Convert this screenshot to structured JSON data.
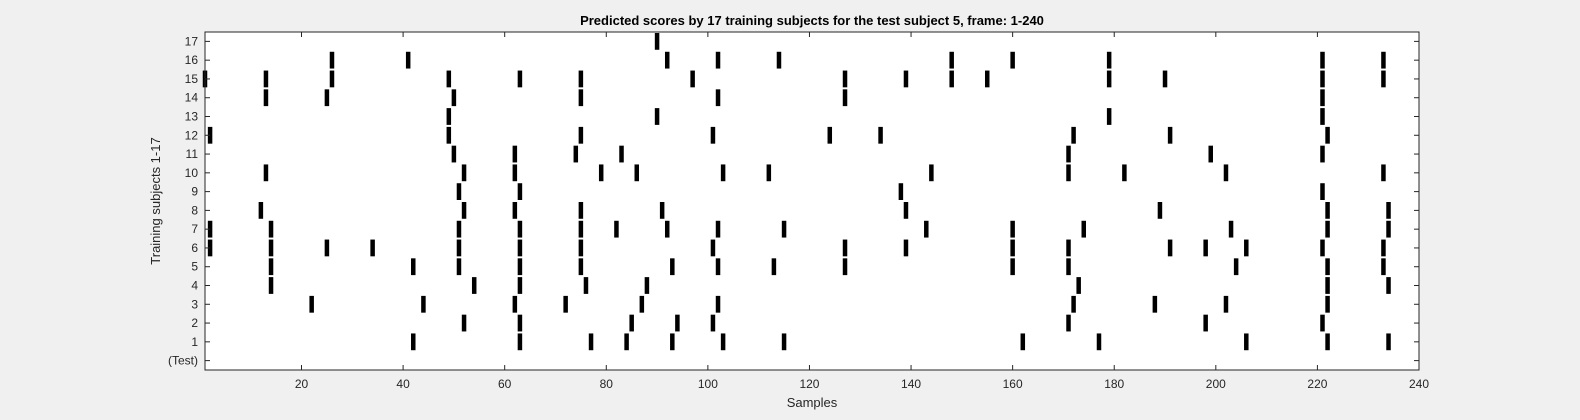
{
  "chart_data": {
    "type": "scatter",
    "title": "Predicted scores by 17 training subjects for the test subject 5, frame: 1-240",
    "xlabel": "Samples",
    "ylabel": "Training subjects 1-17",
    "xlim": [
      1,
      240
    ],
    "xticks": [
      20,
      40,
      60,
      80,
      100,
      120,
      140,
      160,
      180,
      200,
      220,
      240
    ],
    "yticklabels": [
      "(Test)",
      "1",
      "2",
      "3",
      "4",
      "5",
      "6",
      "7",
      "8",
      "9",
      "10",
      "11",
      "12",
      "13",
      "14",
      "15",
      "16",
      "17"
    ],
    "grid": false,
    "marker_color": "#000000",
    "series": [
      {
        "row": "1",
        "x": [
          42,
          63,
          77,
          84,
          93,
          103,
          115,
          162,
          177,
          206,
          222,
          234
        ]
      },
      {
        "row": "2",
        "x": [
          52,
          63,
          85,
          94,
          101,
          171,
          198,
          221
        ]
      },
      {
        "row": "3",
        "x": [
          22,
          44,
          62,
          72,
          87,
          102,
          172,
          188,
          202,
          222
        ]
      },
      {
        "row": "4",
        "x": [
          14,
          54,
          63,
          76,
          88,
          173,
          222,
          234
        ]
      },
      {
        "row": "5",
        "x": [
          14,
          42,
          51,
          63,
          75,
          93,
          102,
          113,
          127,
          160,
          171,
          204,
          222,
          233
        ]
      },
      {
        "row": "6",
        "x": [
          2,
          14,
          25,
          34,
          51,
          63,
          75,
          101,
          127,
          139,
          160,
          171,
          191,
          198,
          206,
          221,
          233
        ]
      },
      {
        "row": "7",
        "x": [
          2,
          14,
          51,
          63,
          75,
          82,
          92,
          102,
          115,
          143,
          160,
          174,
          203,
          222,
          234
        ]
      },
      {
        "row": "8",
        "x": [
          12,
          52,
          62,
          75,
          91,
          139,
          189,
          222,
          234
        ]
      },
      {
        "row": "9",
        "x": [
          51,
          63,
          138,
          221
        ]
      },
      {
        "row": "10",
        "x": [
          13,
          52,
          62,
          79,
          86,
          103,
          112,
          144,
          171,
          182,
          202,
          233
        ]
      },
      {
        "row": "11",
        "x": [
          50,
          62,
          74,
          83,
          171,
          199,
          221
        ]
      },
      {
        "row": "12",
        "x": [
          2,
          49,
          75,
          101,
          124,
          134,
          172,
          191,
          222
        ]
      },
      {
        "row": "13",
        "x": [
          49,
          90,
          179,
          221
        ]
      },
      {
        "row": "14",
        "x": [
          13,
          25,
          50,
          75,
          102,
          127,
          221
        ]
      },
      {
        "row": "15",
        "x": [
          1,
          13,
          26,
          49,
          63,
          75,
          97,
          127,
          139,
          148,
          155,
          179,
          190,
          221,
          233
        ]
      },
      {
        "row": "16",
        "x": [
          26,
          41,
          92,
          102,
          114,
          148,
          160,
          179,
          221,
          233
        ]
      },
      {
        "row": "17",
        "x": [
          90
        ]
      }
    ]
  }
}
